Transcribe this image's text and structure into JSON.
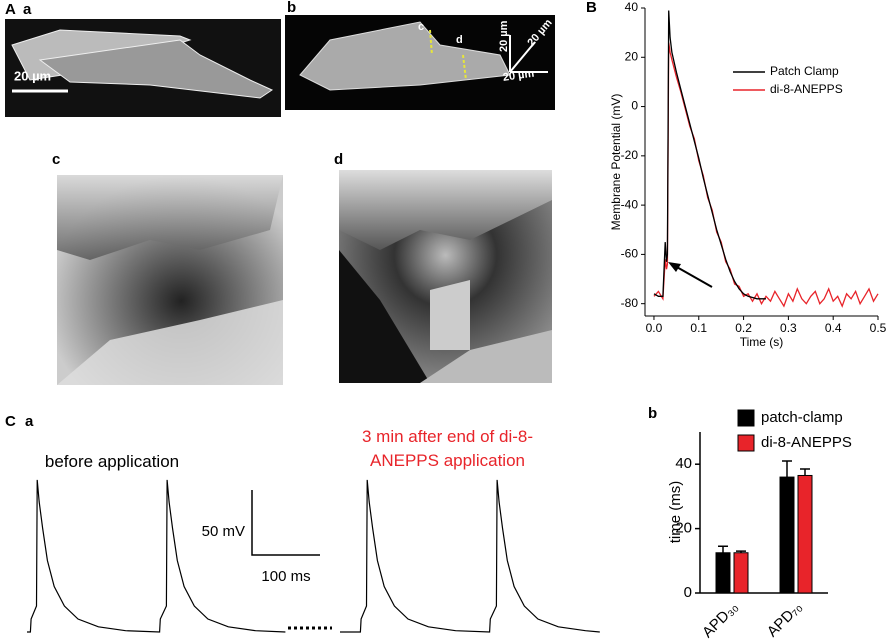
{
  "panel_labels": [
    "A",
    "a",
    "b",
    "B",
    "c",
    "d",
    "C",
    "a",
    "b"
  ],
  "image_texts": [
    "20 µm",
    "c",
    "d",
    "20 µm",
    "20 µm",
    "20 µm"
  ],
  "chart_data": [
    {
      "type": "line",
      "xlabel": "Time (s)",
      "ylabel": "Membrane Potential (mV)",
      "xlim": [
        -0.02,
        0.5
      ],
      "ylim": [
        -85,
        40
      ],
      "xticks": [
        {
          "value": 0,
          "label": "0.0"
        },
        0.1,
        0.2,
        0.3,
        0.4,
        0.5
      ],
      "yticks": [
        -80,
        -60,
        -40,
        -20,
        0,
        20,
        40
      ],
      "legend": "upper right",
      "x": [
        0,
        0.01,
        0.02,
        0.025,
        0.028,
        0.03,
        0.033,
        0.036,
        0.04,
        0.05,
        0.06,
        0.07,
        0.08,
        0.09,
        0.1,
        0.11,
        0.12,
        0.13,
        0.14,
        0.15,
        0.16,
        0.17,
        0.18,
        0.19,
        0.2,
        0.21,
        0.22,
        0.23,
        0.24,
        0.25,
        0.26,
        0.27,
        0.28,
        0.29,
        0.3,
        0.31,
        0.32,
        0.33,
        0.34,
        0.35,
        0.36,
        0.37,
        0.38,
        0.39,
        0.4,
        0.41,
        0.42,
        0.43,
        0.44,
        0.45,
        0.46,
        0.47,
        0.48,
        0.49,
        0.5
      ],
      "series": [
        {
          "name": "Patch Clamp",
          "color": "#000000",
          "values": [
            -76,
            -77,
            -77,
            -55,
            -63,
            -60,
            39,
            28,
            22,
            14,
            7,
            0,
            -7,
            -14,
            -21,
            -29,
            -36,
            -43,
            -50,
            -56,
            -62,
            -67,
            -71,
            -74,
            -76,
            -77,
            -77.5,
            -78,
            -78,
            -78,
            null,
            null,
            null,
            null,
            null,
            null,
            null,
            null,
            null,
            null,
            null,
            null,
            null,
            null,
            null,
            null,
            null,
            null,
            null,
            null,
            null,
            null,
            null,
            null,
            null
          ]
        },
        {
          "name": "di-8-ANEPPS",
          "color": "#e8242a",
          "values": [
            -77,
            -75,
            -78,
            -62,
            -66,
            -64,
            26,
            22,
            19,
            12,
            6,
            -1,
            -8,
            -13,
            -22,
            -28,
            -37,
            -42,
            -51,
            -55,
            -63,
            -66,
            -72,
            -73,
            -77,
            -76,
            -79,
            -76,
            -80,
            -77,
            -79,
            -75,
            -78,
            -81,
            -76,
            -79,
            -74,
            -78,
            -80,
            -77,
            -75,
            -80,
            -78,
            -74,
            -79,
            -77,
            -81,
            -76,
            -78,
            -75,
            -80,
            -77,
            -74,
            -79,
            -76
          ]
        }
      ]
    },
    {
      "type": "trace",
      "scale_labels": [
        "50 mV",
        "100 ms"
      ],
      "series": [
        {
          "name": "before application",
          "color": "#000000",
          "label_color": "#000000",
          "x": [
            0,
            5,
            6,
            14,
            15,
            18,
            23,
            30,
            40,
            55,
            75,
            105,
            145,
            195,
            196,
            205,
            206,
            209,
            214,
            221,
            231,
            246,
            266,
            296,
            336,
            380
          ],
          "values": [
            -80,
            -80,
            -70,
            -60,
            37,
            20,
            0,
            -25,
            -45,
            -60,
            -70,
            -76,
            -79,
            -80,
            -70,
            -60,
            37,
            20,
            0,
            -25,
            -45,
            -60,
            -70,
            -76,
            -79,
            -80
          ]
        },
        {
          "name": "3 min after end of di-8-ANEPPS application",
          "color": "#000000",
          "label_color": "#e8242a",
          "x": [
            0,
            30,
            31,
            39,
            40,
            43,
            48,
            55,
            65,
            80,
            100,
            130,
            170,
            220,
            221,
            230,
            231,
            234,
            239,
            246,
            256,
            271,
            291,
            321,
            361,
            382
          ],
          "values": [
            -80,
            -80,
            -70,
            -60,
            37,
            20,
            0,
            -25,
            -45,
            -60,
            -70,
            -76,
            -79,
            -80,
            -70,
            -60,
            37,
            20,
            0,
            -25,
            -45,
            -60,
            -70,
            -76,
            -79,
            -80
          ]
        }
      ]
    },
    {
      "type": "bar",
      "ylabel": "time (ms)",
      "categories": [
        "APD₃₀",
        "APD₇₀"
      ],
      "ylim": [
        0,
        50
      ],
      "yticks": [
        0,
        20,
        40
      ],
      "legend": "upper left",
      "series": [
        {
          "name": "patch-clamp",
          "color": "#000000",
          "values": [
            12.5,
            36
          ],
          "errors": [
            2,
            5
          ]
        },
        {
          "name": "di-8-ANEPPS",
          "color": "#e8242a",
          "values": [
            12.5,
            36.5
          ],
          "errors": [
            0.5,
            2
          ]
        }
      ]
    }
  ]
}
